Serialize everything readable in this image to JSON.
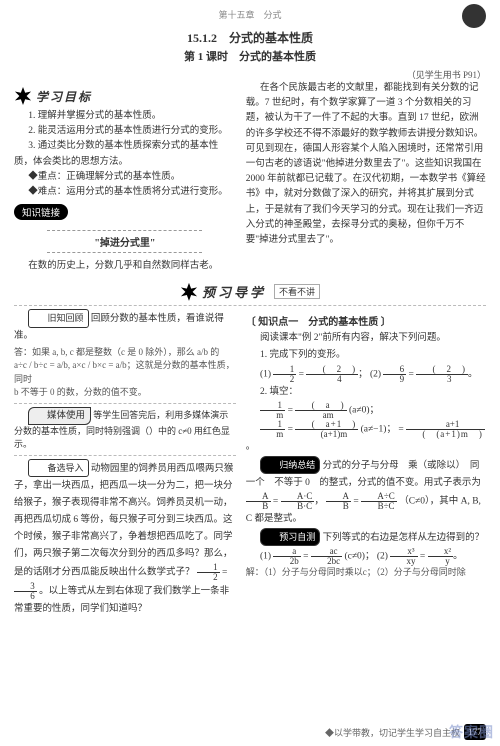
{
  "header": {
    "chapter": "第十五章　分式"
  },
  "title": {
    "section_num": "15.1.2　分式的基本性质",
    "lesson": "第 1 课时　分式的基本性质",
    "reference": "（见学生用书 P91）"
  },
  "sections": {
    "goals_heading": "学习目标",
    "link_heading": "知识链接",
    "preview_heading": "预习导学",
    "preview_sub": "不看不讲"
  },
  "goals": {
    "g1": "1. 理解并掌握分式的基本性质。",
    "g2": "2. 能灵活运用分式的基本性质进行分式的变形。",
    "g3": "3. 通过类比分数的基本性质探索分式的基本性质，体会类比的思想方法。",
    "focus": "重点：正确理解分式的基本性质。",
    "hard": "难点：运用分式的基本性质将分式进行变形。"
  },
  "link_box": "\"掉进分式里\"",
  "story": {
    "s1": "在数的历史上，分数几乎和自然数同样古老。",
    "s2": "在各个民族最古老的文献里，都能找到有关分数的记载。7 世纪时，有个数学家算了一道 3 个分数相关的习题，被认为干了一件了不起的大事。直到 17 世纪，欧洲的许多学校还不得不添最好的数学教师去讲授分数知识。可见到现在，德国人形容某个人陷入困境时，还常常引用一句古老的谚语说\"他掉进分数里去了\"。这些知识我国在 2000 年前就都已记载了。在汉代初期，一本数学书《算经书》中，就对分数做了深入的研究，并将其扩展到分式上，于是就有了我们今天学习的分式。现在让我们一齐迈入分式的神圣殿堂，去探寻分式的奥秘，但你千万不要\"掉进分式里去了\"。"
  },
  "review": {
    "lead": "旧知回顾",
    "prompt": "回顾分数的基本性质，看谁说得准。",
    "ans1": "答：如果 a, b, c 都是整数（c 是 0 除外），那么 a/b 的",
    "ans2": "a÷c / b÷c = a/b, a×c / b×c = a/b；这就是分数的基本性质，同时",
    "ans3": "b 不等于 0 的数，分数的值不变。"
  },
  "media": {
    "label": "媒体使用",
    "text": "等学生回答完后，利用多媒体演示分数的基本性质，同时特别强调（）中的 c≠0 用红色显示。"
  },
  "alt_intro": {
    "lead": "备选导入",
    "text": "动物园里的饲养员用西瓜喂两只猴子，拿出一块西瓜，把西瓜一块一分为二，把一块分给猴子，猴子表现得非常不高兴。饲养员灵机一动，再把西瓜切成 6 等份，每只猴子可分到三块西瓜。这个时候，猴子非常高兴了，争着想把西瓜吃了。同学们，两只猴子第二次每次分到分的西瓜多吗？那么，是的话刚才分西瓜能反映出什么数学式子？",
    "frac_left_n": "1",
    "frac_left_d": "2",
    "eq": " = ",
    "frac_right_n": "3",
    "frac_right_d": "6",
    "tail": "。以上等式从左到右体现了我们数学上一条非常重要的性质，同学们知道吗？"
  },
  "kp1": {
    "label": "知识点一　分式的基本性质",
    "prompt": "阅读课本\"例 2\"前所有内容，解决下列问题。",
    "q1_pre": "1. 完成下列的变形。",
    "q1a_l_n": "1",
    "q1a_l_d": "2",
    "q1a_r_n": "2",
    "q1a_r_d": "4",
    "q1b_l_n": "6",
    "q1b_l_d": "9",
    "q1b_r_n": "2",
    "q1b_r_d": "3",
    "q2_pre": "2. 填空：",
    "q2a_l_n": "1",
    "q2a_l_d": "m",
    "q2a_r_n": "a",
    "q2a_r_d": "am",
    "q2a_cond": "(a≠0)；",
    "q2b_l_n": "1",
    "q2b_l_d": "m",
    "q2b_r_n": "a+1",
    "q2b_r_d": "(a+1)m",
    "q2b_cond": "(a≠−1)；",
    "q2b2_r_n": "a+1",
    "q2b2_r_d": "(a+1)m",
    "summary_lead": "归纳总结",
    "summary": "分式的分子与分母　乘（或除以）　同一个　不等于 0　的整式，分式的值不变。用式子表示为",
    "form1_l_n": "A",
    "form1_l_d": "B",
    "form1_r_n": "A·C",
    "form1_r_d": "B·C",
    "form2_r_n": "A÷C",
    "form2_r_d": "B÷C",
    "form_cond": "（C≠0），其中 A, B, C 都是整式。"
  },
  "apply": {
    "lead": "预习自测",
    "prompt": "下列等式的右边是怎样从左边得到的？",
    "eq1_l_n": "a",
    "eq1_l_d": "2b",
    "eq1_r_n": "ac",
    "eq1_r_d": "2bc",
    "eq1_cond": "(c≠0)；",
    "eq2_l_n": "x³",
    "eq2_l_d": "xy",
    "eq2_r_n": "x²",
    "eq2_r_d": "y",
    "ans": "解：（1）分子与分母同时乘以c；（2）分子与分母同时除"
  },
  "footer": {
    "motto": "◆以学带教，切记学生学习自主权",
    "page": "177"
  },
  "watermark": "答案圈"
}
